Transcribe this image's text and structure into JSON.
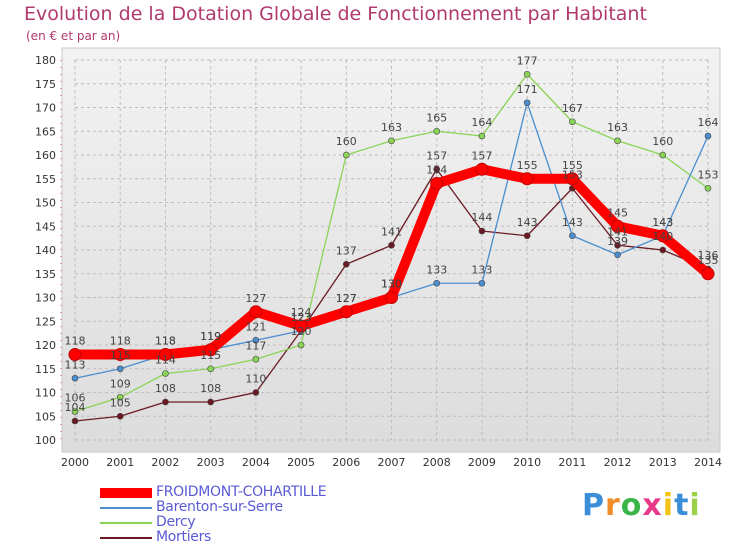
{
  "chart_data": {
    "type": "line",
    "title": "Evolution de la Dotation Globale de Fonctionnement par Habitant",
    "subtitle": "(en € et par an)",
    "x": [
      "2000",
      "2001",
      "2002",
      "2003",
      "2004",
      "2005",
      "2006",
      "2007",
      "2008",
      "2009",
      "2010",
      "2011",
      "2012",
      "2013",
      "2014"
    ],
    "ylim": [
      100,
      180
    ],
    "yticks": [
      100,
      105,
      110,
      115,
      120,
      125,
      130,
      135,
      140,
      145,
      150,
      155,
      160,
      165,
      170,
      175,
      180
    ],
    "grid": true,
    "legend_position": "bottom-left",
    "series": [
      {
        "name": "FROIDMONT-COHARTILLE",
        "color": "#ff0000",
        "values": [
          118,
          118,
          118,
          119,
          127,
          124,
          127,
          130,
          154,
          157,
          155,
          155,
          145,
          143,
          135
        ]
      },
      {
        "name": "Barenton-sur-Serre",
        "color": "#4a8ed0",
        "values": [
          113,
          115,
          118,
          119,
          121,
          123,
          127,
          130,
          133,
          133,
          171,
          143,
          139,
          143,
          164
        ]
      },
      {
        "name": "Dercy",
        "color": "#8ad456",
        "values": [
          106,
          109,
          114,
          115,
          117,
          120,
          160,
          163,
          165,
          164,
          177,
          167,
          163,
          160,
          153
        ]
      },
      {
        "name": "Mortiers",
        "color": "#6b1a24",
        "values": [
          104,
          105,
          108,
          108,
          110,
          123,
          137,
          141,
          157,
          144,
          143,
          153,
          141,
          140,
          136
        ]
      }
    ]
  },
  "brand": {
    "letters": [
      "P",
      "r",
      "o",
      "x",
      "i",
      "t",
      "i"
    ],
    "colors": [
      "#3b8fd8",
      "#f28c28",
      "#3bb54a",
      "#e83a8a",
      "#f2c418",
      "#3b8fd8",
      "#9bd04a"
    ]
  }
}
